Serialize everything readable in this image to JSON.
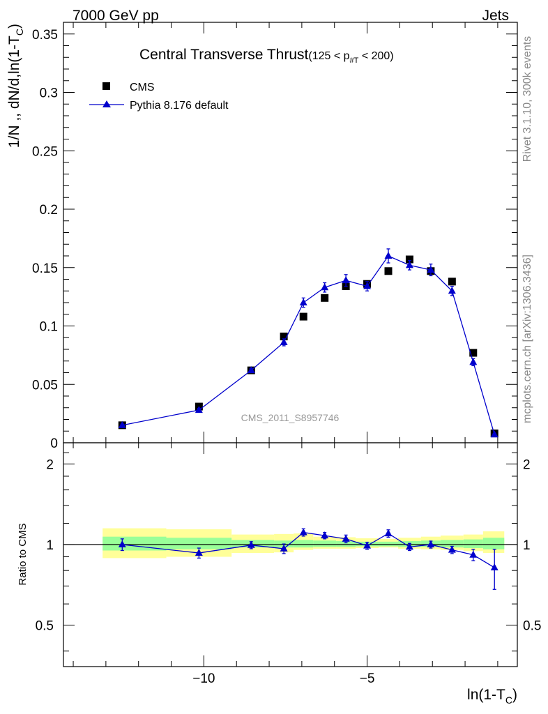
{
  "header": {
    "left": "7000 GeV pp",
    "right": "Jets"
  },
  "side_labels": {
    "rivet": "Rivet 3.1.10,  300k events",
    "mcplots": "mcplots.cern.ch [arXiv:1306.3436]"
  },
  "watermark": "CMS_2011_S8957746",
  "colors": {
    "data": "#000000",
    "mc": "#0000cc",
    "band_inner": "#99ff99",
    "band_outer": "#ffff99",
    "watermark": "#999999"
  },
  "chart_data": [
    {
      "type": "scatter",
      "title": "Central Transverse Thrust",
      "title_range_prefix": "(125 < p",
      "title_range_sub": "#T",
      "title_range_suffix": " < 200)",
      "ylabel": "1/N ,, dN/d,ln(1-T_C)",
      "ylabel_main": "1/N ,, dN/d,ln(1-T",
      "ylabel_sub": "C",
      "ylabel_tail": ")",
      "xlim": [
        -14.3,
        -0.4
      ],
      "ylim": [
        0,
        0.36
      ],
      "yticks": [
        {
          "value": 0,
          "label": "0"
        },
        {
          "value": 0.05,
          "label": "0.05"
        },
        {
          "value": 0.1,
          "label": "0.1"
        },
        {
          "value": 0.15,
          "label": "0.15"
        },
        {
          "value": 0.2,
          "label": "0.2"
        },
        {
          "value": 0.25,
          "label": "0.25"
        },
        {
          "value": 0.3,
          "label": "0.3"
        },
        {
          "value": 0.35,
          "label": "0.35"
        }
      ],
      "legend_position": "top-left",
      "series": [
        {
          "name": "CMS",
          "marker": "square",
          "x": [
            -12.5,
            -10.15,
            -8.55,
            -7.55,
            -6.95,
            -6.3,
            -5.65,
            -5.0,
            -4.35,
            -3.7,
            -3.05,
            -2.4,
            -1.75,
            -1.1
          ],
          "y": [
            0.015,
            0.031,
            0.062,
            0.091,
            0.108,
            0.124,
            0.134,
            0.136,
            0.147,
            0.157,
            0.147,
            0.138,
            0.077,
            0.008
          ]
        },
        {
          "name": "Pythia 8.176 default",
          "marker": "triangle",
          "x": [
            -12.5,
            -10.15,
            -8.55,
            -7.55,
            -6.95,
            -6.3,
            -5.65,
            -5.0,
            -4.35,
            -3.7,
            -3.05,
            -2.4,
            -1.75,
            -1.1
          ],
          "y": [
            0.015,
            0.028,
            0.062,
            0.086,
            0.12,
            0.133,
            0.139,
            0.134,
            0.16,
            0.152,
            0.148,
            0.13,
            0.069,
            0.007
          ],
          "yerr": [
            0.001,
            0.0015,
            0.0015,
            0.003,
            0.004,
            0.004,
            0.005,
            0.004,
            0.006,
            0.004,
            0.005,
            0.004,
            0.003,
            0.001
          ]
        }
      ]
    },
    {
      "type": "line",
      "ylabel": "Ratio to CMS",
      "xlabel": "ln(1-T_C)",
      "xlabel_main": "ln(1-T",
      "xlabel_sub": "C",
      "xlabel_tail": ")",
      "xlim": [
        -14.3,
        -0.4
      ],
      "ylim": [
        0.35,
        2.4
      ],
      "yscale": "log",
      "yticks": [
        {
          "value": 0.5,
          "label": "0.5"
        },
        {
          "value": 1,
          "label": "1"
        },
        {
          "value": 2,
          "label": "2"
        }
      ],
      "xticks": [
        {
          "value": -10,
          "label": "−10"
        },
        {
          "value": -5,
          "label": "−5"
        }
      ],
      "reference": 1,
      "bands": [
        {
          "x0": -13.1,
          "x1": -11.15,
          "inner": [
            0.95,
            1.07
          ],
          "outer": [
            0.89,
            1.15
          ]
        },
        {
          "x0": -11.15,
          "x1": -9.15,
          "inner": [
            0.96,
            1.06
          ],
          "outer": [
            0.9,
            1.14
          ]
        },
        {
          "x0": -9.15,
          "x1": -7.85,
          "inner": [
            0.975,
            1.04
          ],
          "outer": [
            0.93,
            1.09
          ]
        },
        {
          "x0": -7.85,
          "x1": -7.25,
          "inner": [
            0.975,
            1.035
          ],
          "outer": [
            0.935,
            1.095
          ]
        },
        {
          "x0": -7.25,
          "x1": -6.65,
          "inner": [
            0.975,
            1.04
          ],
          "outer": [
            0.955,
            1.1
          ]
        },
        {
          "x0": -6.65,
          "x1": -5.95,
          "inner": [
            0.98,
            1.035
          ],
          "outer": [
            0.965,
            1.07
          ]
        },
        {
          "x0": -5.95,
          "x1": -5.35,
          "inner": [
            0.98,
            1.03
          ],
          "outer": [
            0.965,
            1.065
          ]
        },
        {
          "x0": -5.35,
          "x1": -4.65,
          "inner": [
            0.985,
            1.025
          ],
          "outer": [
            0.97,
            1.055
          ]
        },
        {
          "x0": -4.65,
          "x1": -4.05,
          "inner": [
            0.985,
            1.025
          ],
          "outer": [
            0.975,
            1.05
          ]
        },
        {
          "x0": -4.05,
          "x1": -3.35,
          "inner": [
            0.98,
            1.03
          ],
          "outer": [
            0.965,
            1.06
          ]
        },
        {
          "x0": -3.35,
          "x1": -2.75,
          "inner": [
            0.98,
            1.035
          ],
          "outer": [
            0.96,
            1.07
          ]
        },
        {
          "x0": -2.75,
          "x1": -2.05,
          "inner": [
            0.975,
            1.04
          ],
          "outer": [
            0.955,
            1.08
          ]
        },
        {
          "x0": -2.05,
          "x1": -1.45,
          "inner": [
            0.97,
            1.045
          ],
          "outer": [
            0.945,
            1.09
          ]
        },
        {
          "x0": -1.45,
          "x1": -0.8,
          "inner": [
            0.96,
            1.06
          ],
          "outer": [
            0.93,
            1.12
          ]
        }
      ],
      "series": [
        {
          "name": "Pythia 8.176 default / CMS",
          "x": [
            -12.5,
            -10.15,
            -8.55,
            -7.55,
            -6.95,
            -6.3,
            -5.65,
            -5.0,
            -4.35,
            -3.7,
            -3.05,
            -2.4,
            -1.75,
            -1.1
          ],
          "y": [
            1.0,
            0.93,
            0.995,
            0.965,
            1.11,
            1.08,
            1.05,
            0.99,
            1.1,
            0.98,
            1.0,
            0.955,
            0.915,
            0.82
          ],
          "yerr": [
            0.05,
            0.04,
            0.03,
            0.04,
            0.035,
            0.03,
            0.035,
            0.03,
            0.035,
            0.03,
            0.03,
            0.03,
            0.045,
            0.14
          ]
        }
      ]
    }
  ]
}
